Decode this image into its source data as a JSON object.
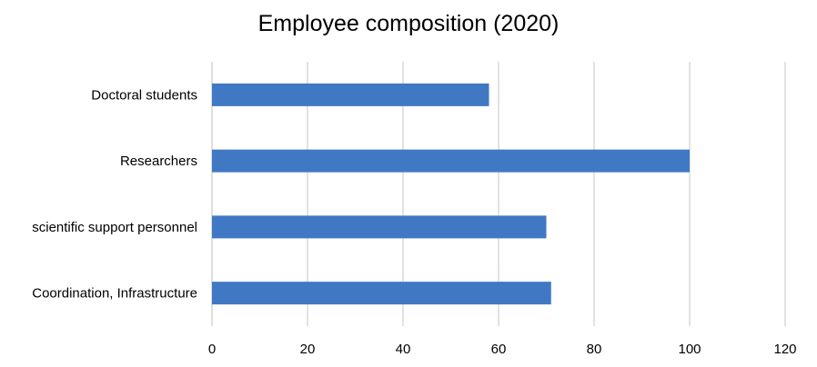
{
  "chart_data": {
    "type": "bar",
    "orientation": "horizontal",
    "title": "Employee composition (2020)",
    "categories": [
      "Doctoral students",
      "Researchers",
      "scientific support personnel",
      "Coordination, Infrastructure"
    ],
    "values": [
      58,
      100,
      70,
      71
    ],
    "xlim": [
      0,
      120
    ],
    "xticks": [
      "0",
      "20",
      "40",
      "60",
      "80",
      "100",
      "120"
    ],
    "xlabel": "",
    "ylabel": "",
    "grid": "vertical",
    "legend": "none",
    "bar_color": "#4178c4",
    "grid_color": "#d9d9d9"
  }
}
